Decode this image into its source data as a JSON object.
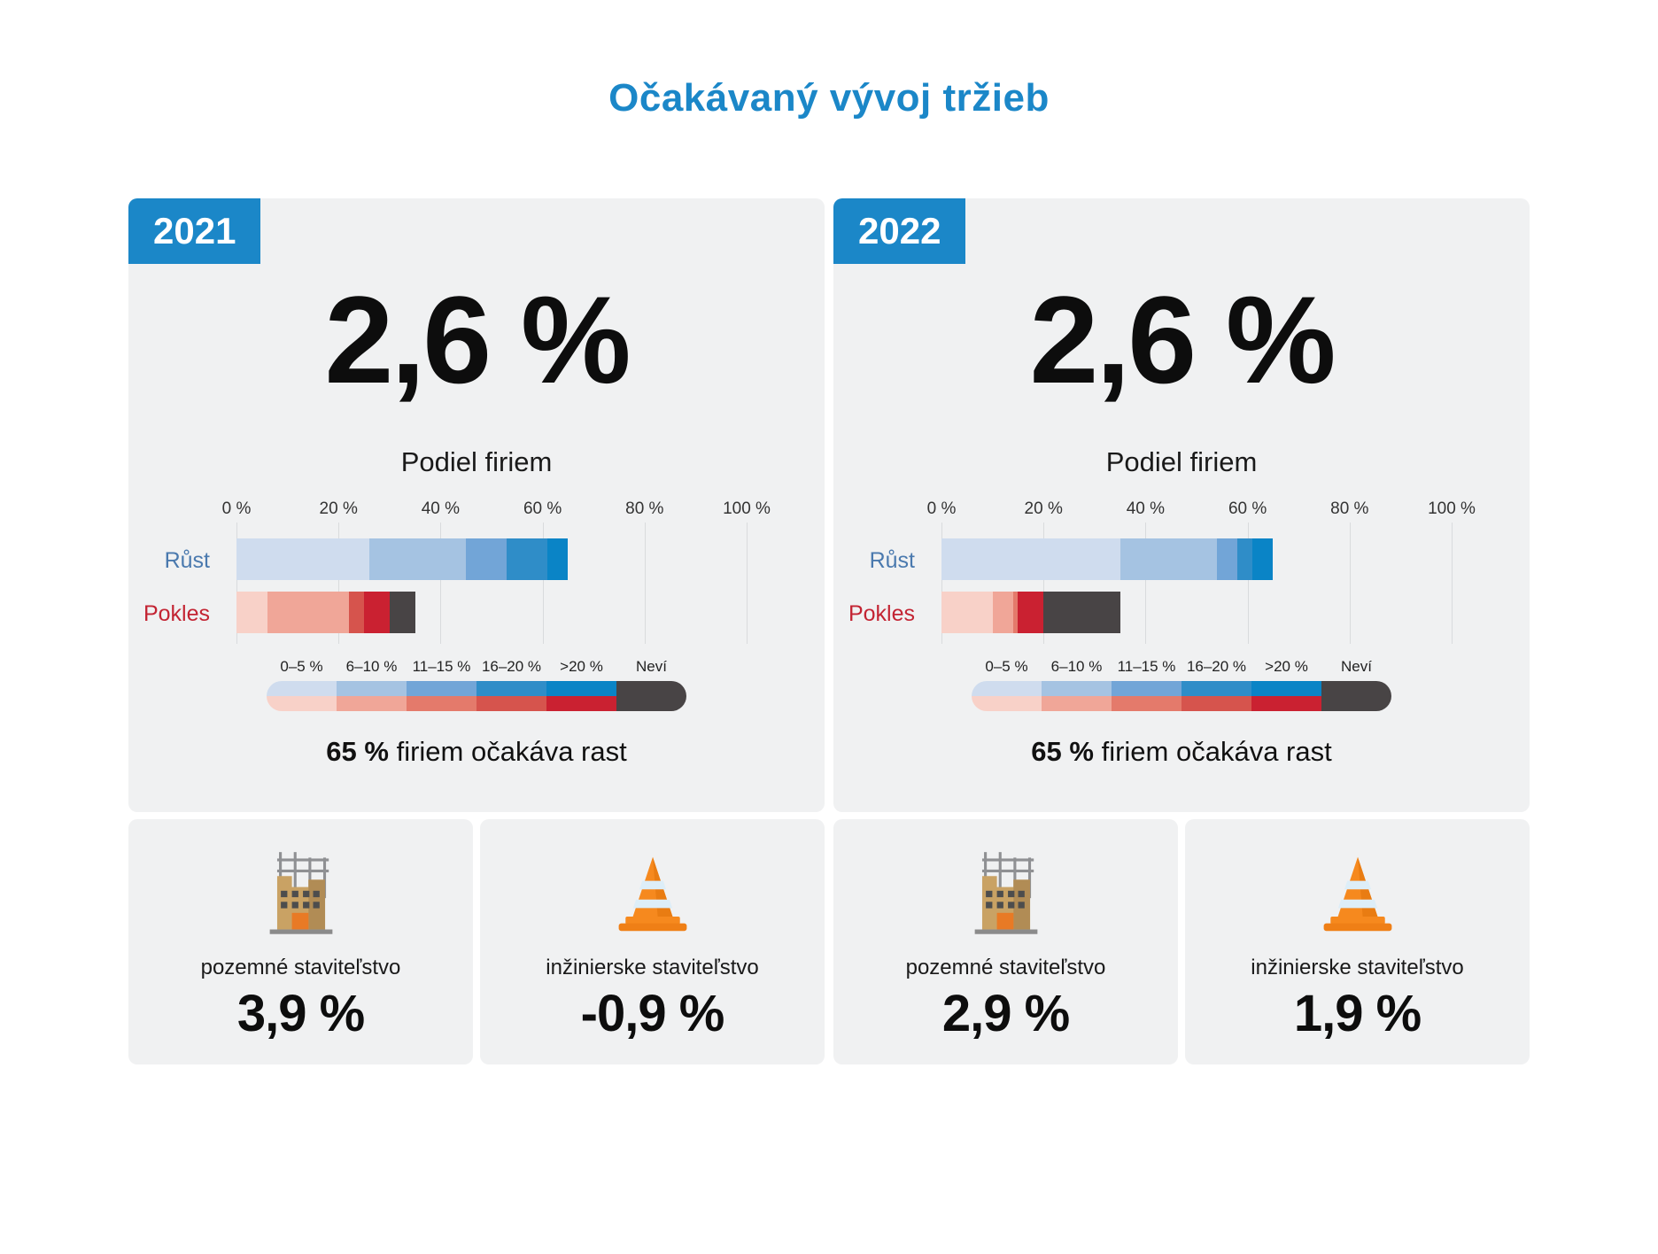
{
  "title": "Očakávaný vývoj tržieb",
  "colors": {
    "accent": "#1b87c8",
    "panel_bg": "#f0f1f2",
    "growth_shades": [
      "#cfdcee",
      "#a5c3e2",
      "#72a5d7",
      "#2f8dc8",
      "#0a84c6"
    ],
    "decline_shades": [
      "#f8d1c8",
      "#f0a698",
      "#e47a6b",
      "#d6544d",
      "#ca2131"
    ],
    "unknown_color": "#484445",
    "growth_label_color": "#4a79ae",
    "decline_label_color": "#c32433"
  },
  "legend": {
    "categories": [
      "0–5 %",
      "6–10 %",
      "11–15 %",
      "16–20 %",
      ">20 %",
      "Neví"
    ]
  },
  "chart_data": [
    {
      "type": "bar",
      "year": "2021",
      "headline": "2,6 %",
      "subtitle": "Podiel firiem",
      "xlabel": "",
      "xlim": [
        0,
        100
      ],
      "x_ticks": [
        "0 %",
        "20 %",
        "40 %",
        "60 %",
        "80 %",
        "100 %"
      ],
      "rows": [
        {
          "label": "Růst",
          "values": [
            26,
            19,
            8,
            8,
            4
          ],
          "total": 65
        },
        {
          "label": "Pokles",
          "values": [
            6,
            16,
            0,
            3,
            5
          ],
          "total": 30
        }
      ],
      "unknown": 5,
      "note_value": "65 %",
      "note_text": "firiem očakáva rast",
      "sectors": [
        {
          "icon": "building",
          "label": "pozemné staviteľstvo",
          "value": "3,9 %"
        },
        {
          "icon": "cone",
          "label": "inžinierske staviteľstvo",
          "value": "-0,9 %"
        }
      ]
    },
    {
      "type": "bar",
      "year": "2022",
      "headline": "2,6 %",
      "subtitle": "Podiel firiem",
      "xlabel": "",
      "xlim": [
        0,
        100
      ],
      "x_ticks": [
        "0 %",
        "20 %",
        "40 %",
        "60 %",
        "80 %",
        "100 %"
      ],
      "rows": [
        {
          "label": "Růst",
          "values": [
            35,
            19,
            4,
            3,
            4
          ],
          "total": 65
        },
        {
          "label": "Pokles",
          "values": [
            10,
            4,
            1,
            0,
            5
          ],
          "total": 20
        }
      ],
      "unknown": 15,
      "note_value": "65 %",
      "note_text": "firiem očakáva rast",
      "sectors": [
        {
          "icon": "building",
          "label": "pozemné staviteľstvo",
          "value": "2,9 %"
        },
        {
          "icon": "cone",
          "label": "inžinierske staviteľstvo",
          "value": "1,9 %"
        }
      ]
    }
  ]
}
